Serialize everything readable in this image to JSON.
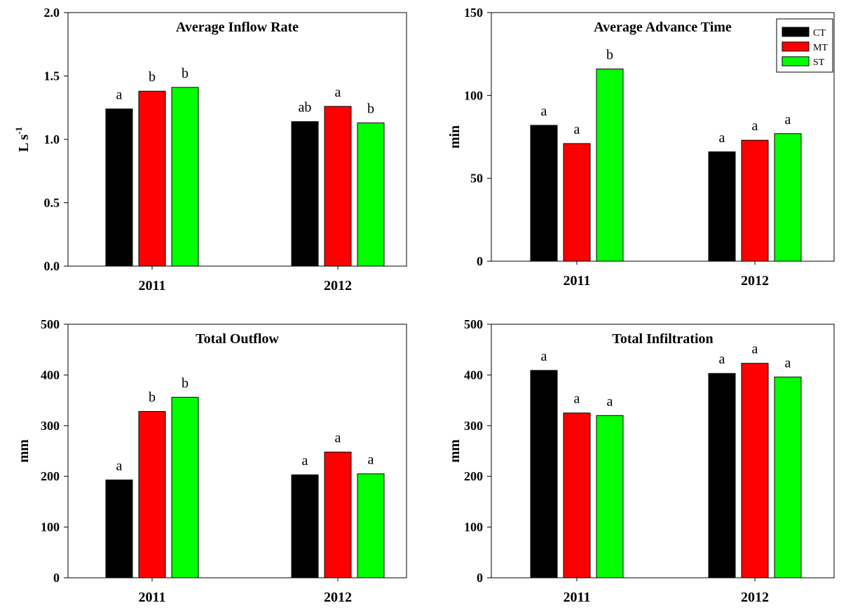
{
  "colors": {
    "CT": "#000000",
    "MT": "#ff0000",
    "ST": "#00ff00"
  },
  "legend": {
    "entries": [
      "CT",
      "MT",
      "ST"
    ],
    "placement": "top-right of panel 2"
  },
  "chart_data": [
    {
      "type": "bar",
      "title": "Average Inflow Rate",
      "ylabel": "L s",
      "ylabel_sup": "-1",
      "xlabel": "",
      "categories": [
        "2011",
        "2012"
      ],
      "ylim": [
        0,
        2.0
      ],
      "yticks": [
        "0.0",
        "0.5",
        "1.0",
        "1.5",
        "2.0"
      ],
      "series": [
        {
          "name": "CT",
          "values": [
            1.24,
            1.14
          ],
          "labels": [
            "a",
            "ab"
          ]
        },
        {
          "name": "MT",
          "values": [
            1.38,
            1.26
          ],
          "labels": [
            "b",
            "a"
          ]
        },
        {
          "name": "ST",
          "values": [
            1.41,
            1.13
          ],
          "labels": [
            "b",
            "b"
          ]
        }
      ]
    },
    {
      "type": "bar",
      "title": "Average Advance Time",
      "ylabel": "min",
      "ylabel_sup": "",
      "xlabel": "",
      "categories": [
        "2011",
        "2012"
      ],
      "ylim": [
        0,
        150
      ],
      "yticks": [
        "0",
        "50",
        "100",
        "150"
      ],
      "series": [
        {
          "name": "CT",
          "values": [
            82,
            66
          ],
          "labels": [
            "a",
            "a"
          ]
        },
        {
          "name": "MT",
          "values": [
            71,
            73
          ],
          "labels": [
            "a",
            "a"
          ]
        },
        {
          "name": "ST",
          "values": [
            116,
            77
          ],
          "labels": [
            "b",
            "a"
          ]
        }
      ]
    },
    {
      "type": "bar",
      "title": "Total Outflow",
      "ylabel": "mm",
      "ylabel_sup": "",
      "xlabel": "",
      "categories": [
        "2011",
        "2012"
      ],
      "ylim": [
        0,
        500
      ],
      "yticks": [
        "0",
        "100",
        "200",
        "300",
        "400",
        "500"
      ],
      "series": [
        {
          "name": "CT",
          "values": [
            193,
            203
          ],
          "labels": [
            "a",
            "a"
          ]
        },
        {
          "name": "MT",
          "values": [
            328,
            248
          ],
          "labels": [
            "b",
            "a"
          ]
        },
        {
          "name": "ST",
          "values": [
            356,
            205
          ],
          "labels": [
            "b",
            "a"
          ]
        }
      ]
    },
    {
      "type": "bar",
      "title": "Total Infiltration",
      "ylabel": "mm",
      "ylabel_sup": "",
      "xlabel": "",
      "categories": [
        "2011",
        "2012"
      ],
      "ylim": [
        0,
        500
      ],
      "yticks": [
        "0",
        "100",
        "200",
        "300",
        "400",
        "500"
      ],
      "series": [
        {
          "name": "CT",
          "values": [
            409,
            403
          ],
          "labels": [
            "a",
            "a"
          ]
        },
        {
          "name": "MT",
          "values": [
            325,
            423
          ],
          "labels": [
            "a",
            "a"
          ]
        },
        {
          "name": "ST",
          "values": [
            320,
            396
          ],
          "labels": [
            "a",
            "a"
          ]
        }
      ]
    }
  ]
}
